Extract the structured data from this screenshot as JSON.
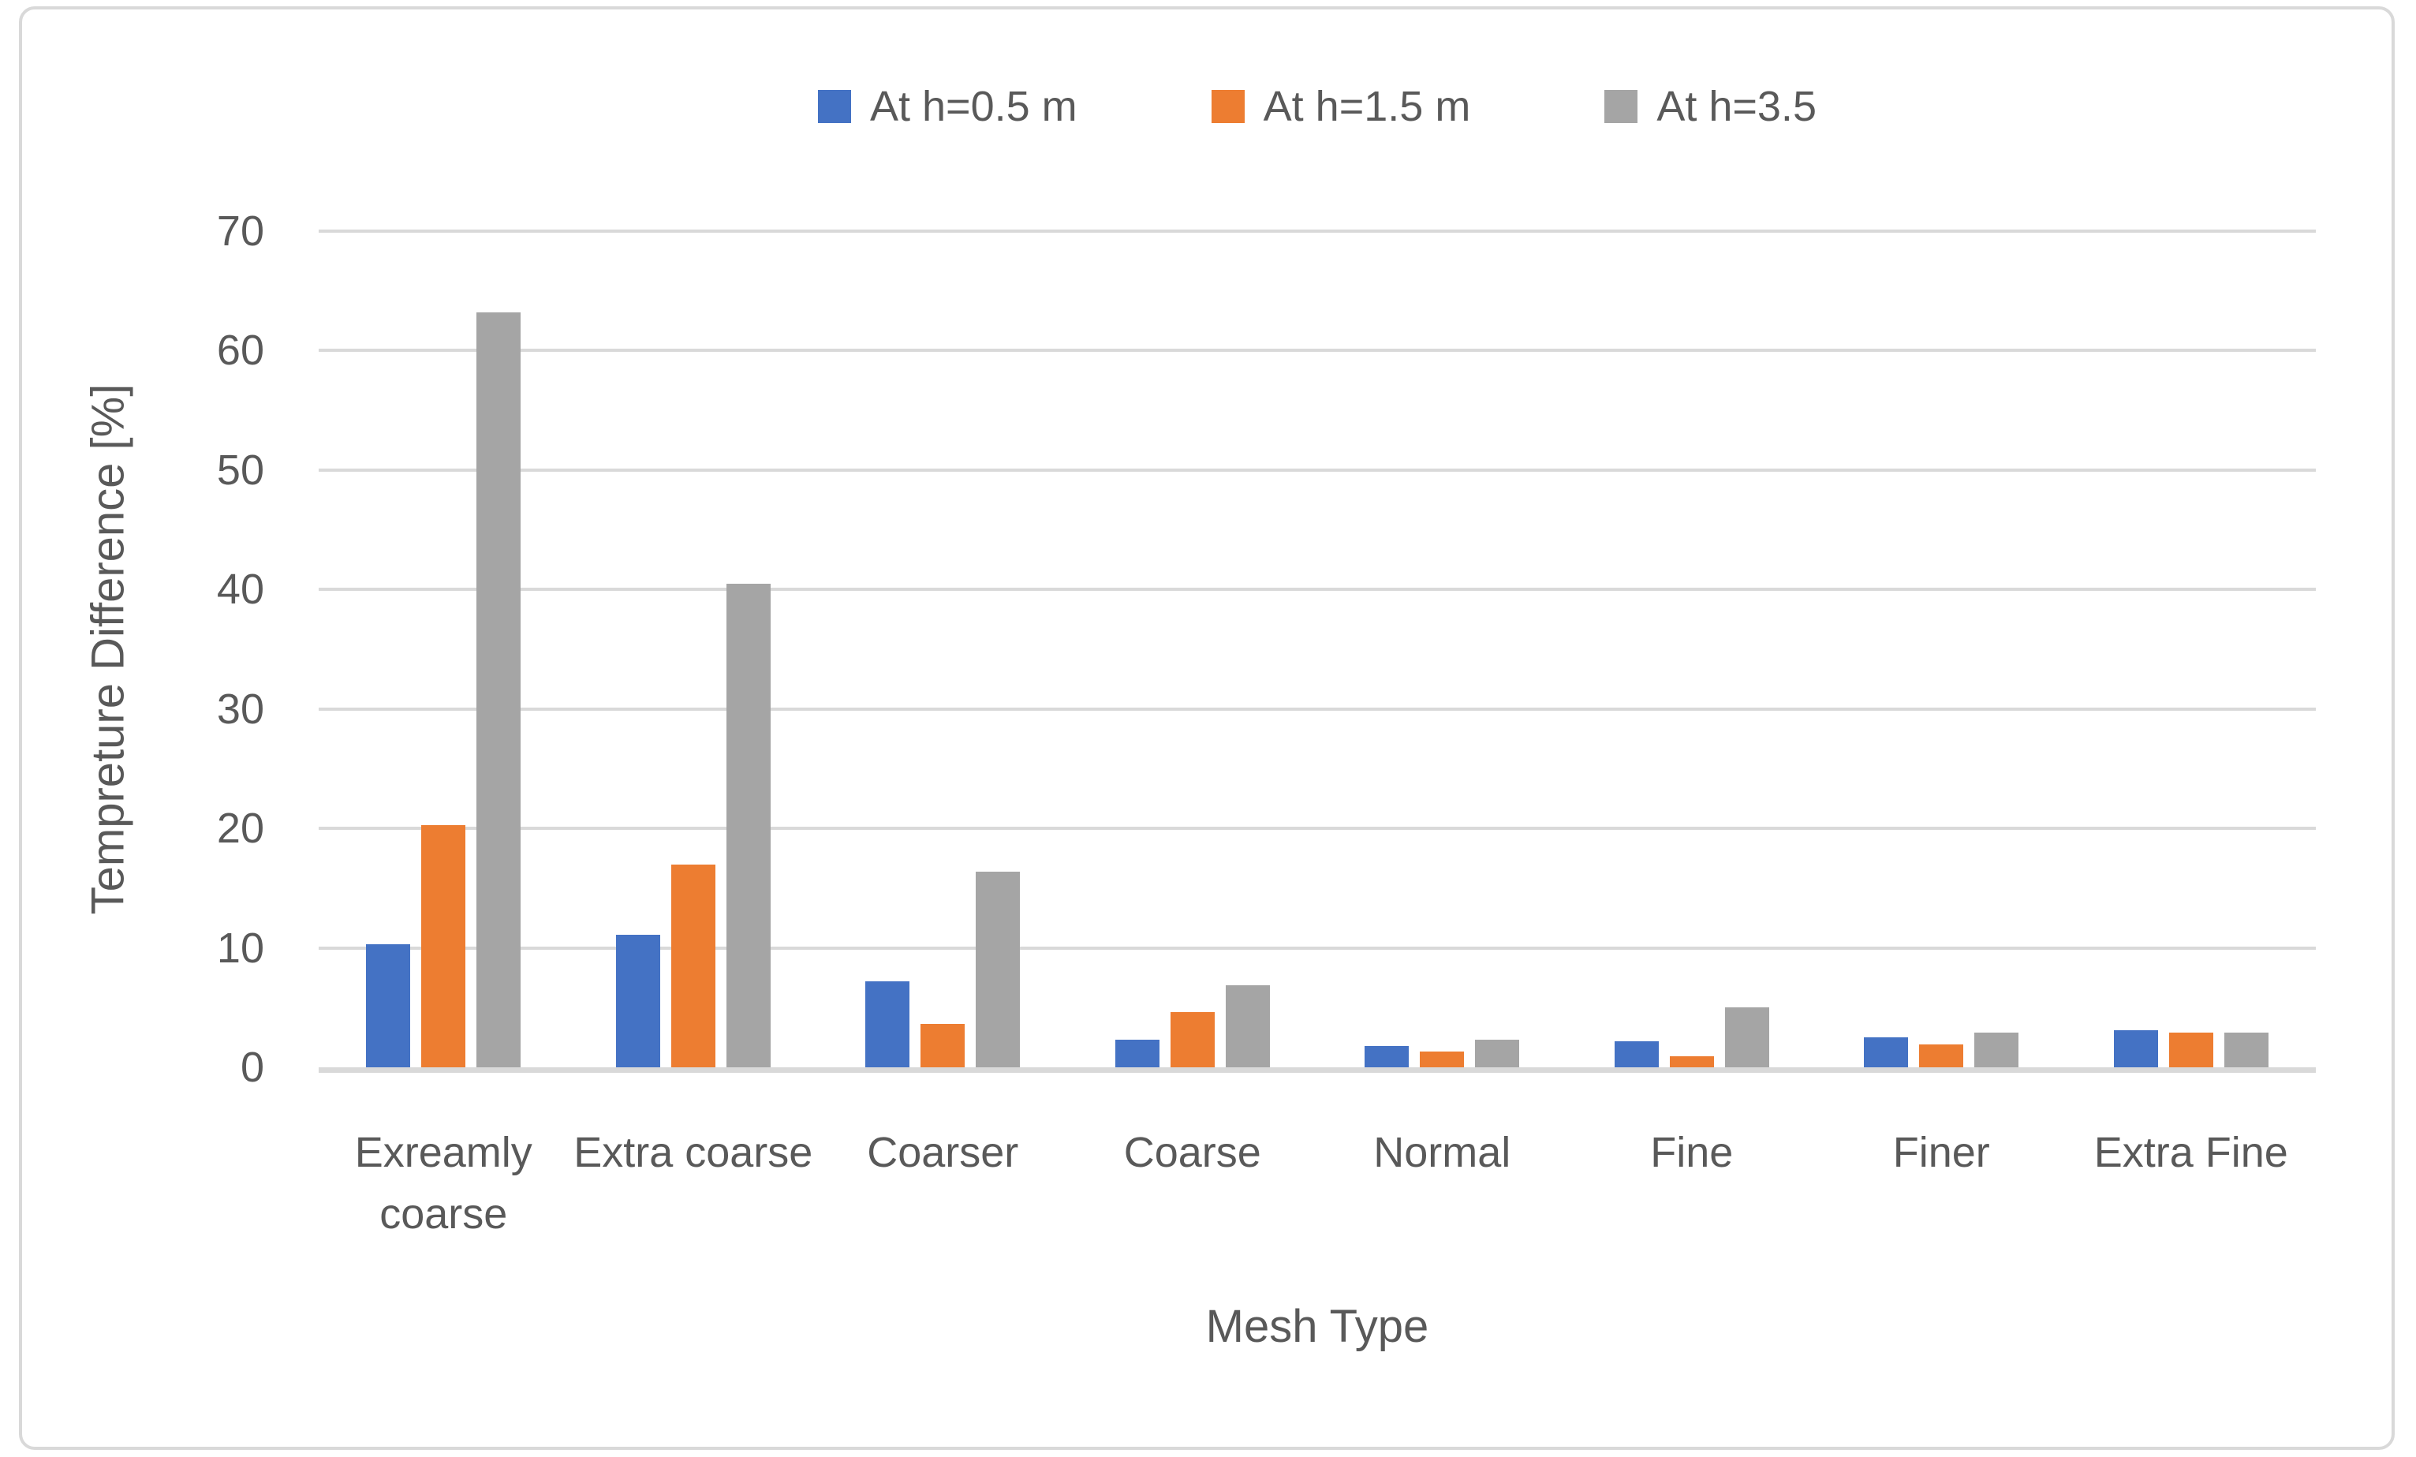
{
  "chart_data": {
    "type": "bar",
    "title": "",
    "categories": [
      "Exreamly coarse",
      "Extra coarse",
      "Coarser",
      "Coarse",
      "Normal",
      "Fine",
      "Finer",
      "Extra Fine"
    ],
    "series": [
      {
        "name": "At h=0.5 m",
        "color": "#4472C4",
        "values": [
          10.3,
          11.1,
          7.2,
          2.3,
          1.8,
          2.2,
          2.5,
          3.1
        ]
      },
      {
        "name": "At h=1.5 m",
        "color": "#ED7D31",
        "values": [
          20.3,
          17.0,
          3.6,
          4.6,
          1.3,
          0.9,
          1.9,
          2.9
        ]
      },
      {
        "name": "At h=3.5",
        "color": "#A5A5A5",
        "values": [
          63.2,
          40.5,
          16.4,
          6.9,
          2.3,
          5.0,
          2.9,
          2.9
        ]
      }
    ],
    "xlabel": "Mesh Type",
    "ylabel": "Tempreture Difference [%]",
    "ylim": [
      0,
      70
    ],
    "yticks": [
      0,
      10,
      20,
      30,
      40,
      50,
      60,
      70
    ],
    "grid": true,
    "legend_position": "top"
  },
  "styles": {
    "grid_color": "#D9D9D9",
    "axis_line_color": "#D9D9D9",
    "figure_border_color": "#D9D9D9",
    "text_color": "#595959",
    "background": "#FFFFFF"
  }
}
